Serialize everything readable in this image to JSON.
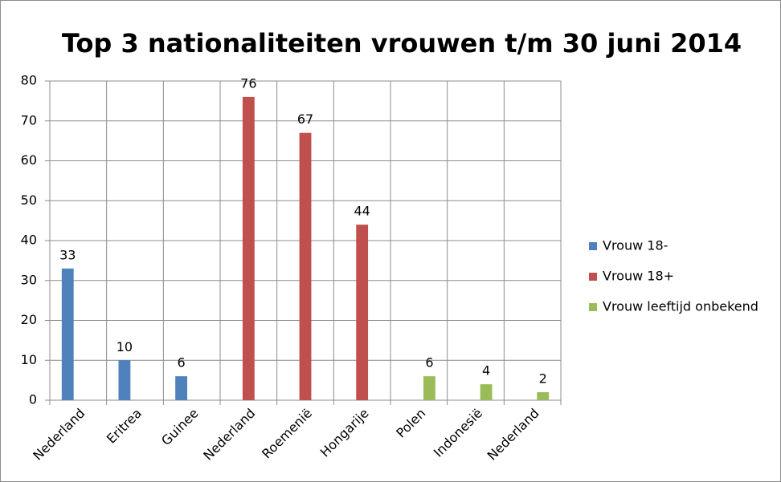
{
  "chart_data": {
    "type": "bar",
    "title": "Top 3 nationaliteiten vrouwen t/m 30 juni 2014",
    "categories": [
      "Nederland",
      "Eritrea",
      "Guinee",
      "Nederland",
      "Roemenië",
      "Hongarije",
      "Polen",
      "Indonesië",
      "Nederland"
    ],
    "series": [
      {
        "name": "Vrouw 18-",
        "color": "#4f81bd",
        "values": [
          33,
          10,
          6,
          null,
          null,
          null,
          null,
          null,
          null
        ]
      },
      {
        "name": "Vrouw 18+",
        "color": "#c0504d",
        "values": [
          null,
          null,
          null,
          76,
          67,
          44,
          null,
          null,
          null
        ]
      },
      {
        "name": "Vrouw leeftijd onbekend",
        "color": "#9bbb59",
        "values": [
          null,
          null,
          null,
          null,
          null,
          null,
          6,
          4,
          2
        ]
      }
    ],
    "ylim": [
      0,
      80
    ],
    "yticks": [
      0,
      10,
      20,
      30,
      40,
      50,
      60,
      70,
      80
    ],
    "grid": true,
    "legend": "right"
  }
}
